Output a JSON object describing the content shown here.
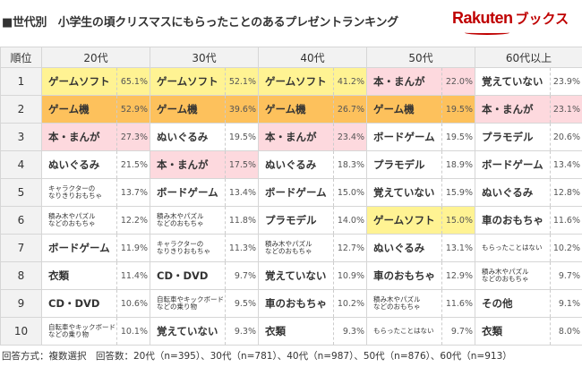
{
  "title": "■世代別　小学生の頃クリスマスにもらったことのあるプレゼントランキング",
  "logo": {
    "brand": "Rakuten",
    "sub": "ブックス"
  },
  "colors": {
    "yellow": "#fff393",
    "orange": "#fdc15c",
    "pink": "#fdd9de",
    "brand": "#bf0000"
  },
  "headers": [
    "順位",
    "20代",
    "30代",
    "40代",
    "50代",
    "60代以上"
  ],
  "rows": [
    {
      "rank": "1",
      "cells": [
        {
          "name": "ゲームソフト",
          "pct": "65.1%",
          "hl": "yellow"
        },
        {
          "name": "ゲームソフト",
          "pct": "52.1%",
          "hl": "yellow"
        },
        {
          "name": "ゲームソフト",
          "pct": "41.2%",
          "hl": "yellow"
        },
        {
          "name": "本・まんが",
          "pct": "22.0%",
          "hl": "pink"
        },
        {
          "name": "覚えていない",
          "pct": "23.9%",
          "hl": ""
        }
      ]
    },
    {
      "rank": "2",
      "cells": [
        {
          "name": "ゲーム機",
          "pct": "52.9%",
          "hl": "orange"
        },
        {
          "name": "ゲーム機",
          "pct": "39.6%",
          "hl": "orange"
        },
        {
          "name": "ゲーム機",
          "pct": "26.7%",
          "hl": "orange"
        },
        {
          "name": "ゲーム機",
          "pct": "19.5%",
          "hl": "orange"
        },
        {
          "name": "本・まんが",
          "pct": "23.1%",
          "hl": "pink"
        }
      ]
    },
    {
      "rank": "3",
      "cells": [
        {
          "name": "本・まんが",
          "pct": "27.3%",
          "hl": "pink"
        },
        {
          "name": "ぬいぐるみ",
          "pct": "19.5%",
          "hl": ""
        },
        {
          "name": "本・まんが",
          "pct": "23.4%",
          "hl": "pink"
        },
        {
          "name": "ボードゲーム",
          "pct": "19.5%",
          "hl": ""
        },
        {
          "name": "プラモデル",
          "pct": "20.6%",
          "hl": ""
        }
      ]
    },
    {
      "rank": "4",
      "cells": [
        {
          "name": "ぬいぐるみ",
          "pct": "21.5%",
          "hl": ""
        },
        {
          "name": "本・まんが",
          "pct": "17.5%",
          "hl": "pink"
        },
        {
          "name": "ぬいぐるみ",
          "pct": "18.3%",
          "hl": ""
        },
        {
          "name": "プラモデル",
          "pct": "18.9%",
          "hl": ""
        },
        {
          "name": "ボードゲーム",
          "pct": "13.4%",
          "hl": ""
        }
      ]
    },
    {
      "rank": "5",
      "cells": [
        {
          "name": "キャラクターの\nなりきりおもちゃ",
          "pct": "13.7%",
          "hl": "",
          "small": true
        },
        {
          "name": "ボードゲーム",
          "pct": "13.4%",
          "hl": ""
        },
        {
          "name": "ボードゲーム",
          "pct": "15.0%",
          "hl": ""
        },
        {
          "name": "覚えていない",
          "pct": "15.9%",
          "hl": ""
        },
        {
          "name": "ぬいぐるみ",
          "pct": "12.8%",
          "hl": ""
        }
      ]
    },
    {
      "rank": "6",
      "cells": [
        {
          "name": "積み木やパズル\nなどのおもちゃ",
          "pct": "12.2%",
          "hl": "",
          "small": true
        },
        {
          "name": "積み木やパズル\nなどのおもちゃ",
          "pct": "11.8%",
          "hl": "",
          "small": true
        },
        {
          "name": "プラモデル",
          "pct": "14.0%",
          "hl": ""
        },
        {
          "name": "ゲームソフト",
          "pct": "15.0%",
          "hl": "yellow"
        },
        {
          "name": "車のおもちゃ",
          "pct": "11.6%",
          "hl": ""
        }
      ]
    },
    {
      "rank": "7",
      "cells": [
        {
          "name": "ボードゲーム",
          "pct": "11.9%",
          "hl": ""
        },
        {
          "name": "キャラクターの\nなりきりおもちゃ",
          "pct": "11.3%",
          "hl": "",
          "small": true
        },
        {
          "name": "積み木やパズル\nなどのおもちゃ",
          "pct": "12.7%",
          "hl": "",
          "small": true
        },
        {
          "name": "ぬいぐるみ",
          "pct": "13.1%",
          "hl": ""
        },
        {
          "name": "もらったことはない",
          "pct": "10.2%",
          "hl": "",
          "small": true
        }
      ]
    },
    {
      "rank": "8",
      "cells": [
        {
          "name": "衣類",
          "pct": "11.4%",
          "hl": ""
        },
        {
          "name": "CD・DVD",
          "pct": "9.7%",
          "hl": ""
        },
        {
          "name": "覚えていない",
          "pct": "10.9%",
          "hl": ""
        },
        {
          "name": "車のおもちゃ",
          "pct": "12.9%",
          "hl": ""
        },
        {
          "name": "積み木やパズル\nなどのおもちゃ",
          "pct": "9.7%",
          "hl": "",
          "small": true
        }
      ]
    },
    {
      "rank": "9",
      "cells": [
        {
          "name": "CD・DVD",
          "pct": "10.6%",
          "hl": ""
        },
        {
          "name": "自転車やキックボード\nなどの乗り物",
          "pct": "9.5%",
          "hl": "",
          "small": true
        },
        {
          "name": "車のおもちゃ",
          "pct": "10.2%",
          "hl": ""
        },
        {
          "name": "積み木やパズル\nなどのおもちゃ",
          "pct": "11.6%",
          "hl": "",
          "small": true
        },
        {
          "name": "その他",
          "pct": "9.1%",
          "hl": ""
        }
      ]
    },
    {
      "rank": "10",
      "cells": [
        {
          "name": "自転車やキックボード\nなどの乗り物",
          "pct": "10.1%",
          "hl": "",
          "small": true
        },
        {
          "name": "覚えていない",
          "pct": "9.3%",
          "hl": ""
        },
        {
          "name": "衣類",
          "pct": "9.3%",
          "hl": ""
        },
        {
          "name": "もらったことはない",
          "pct": "9.7%",
          "hl": "",
          "small": true
        },
        {
          "name": "衣類",
          "pct": "8.0%",
          "hl": ""
        }
      ]
    }
  ],
  "footer": "回答方式：複数選択　回答数：20代（n=395）、30代（n=781）、40代（n=987）、50代（n=876）、60代（n=913）"
}
